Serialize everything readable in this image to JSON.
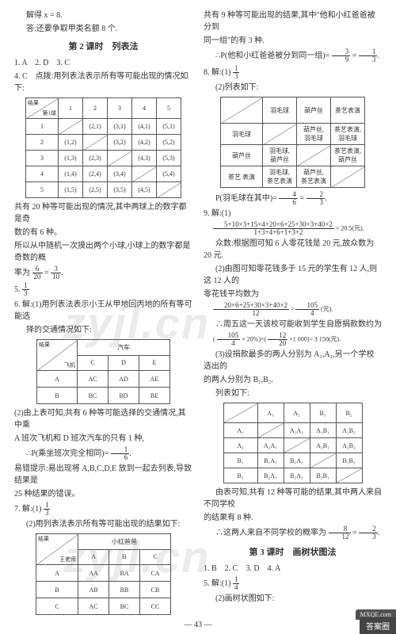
{
  "left": {
    "l1": "解得 x = 8.",
    "l2": "答:还要争取甲类名额 8 个.",
    "sec_title": "第 2 课时　列表法",
    "l3": "1. A　2. D　3. C",
    "l4": "4. C　点拨:用列表法表示所有等可能出现的情况如下:",
    "t1_hdr_diag_top": "结果",
    "t1_hdr_diag_bot": "第1球",
    "t1_cols": [
      "1",
      "2",
      "3",
      "4",
      "5"
    ],
    "t1_rows": [
      "1",
      "2",
      "3",
      "4",
      "5"
    ],
    "t1_c": [
      [
        "",
        "(2,1)",
        "(3,1)",
        "(4,1)",
        "(5,1)"
      ],
      [
        "(1,2)",
        "",
        "(3,2)",
        "(4,2)",
        "(5,2)"
      ],
      [
        "(1,3)",
        "(2,3)",
        "",
        "(4,3)",
        "(5,3)"
      ],
      [
        "(1,4)",
        "(2,4)",
        "(3,4)",
        "",
        "(5,4)"
      ],
      [
        "(1,5)",
        "(2,5)",
        "(3,5)",
        "(4,5)",
        ""
      ]
    ],
    "l5": "共有 20 种等可能出现的情况,其中两球上的数字都是奇",
    "l5b": "数的有 6 种。",
    "l6": "所以从中随机一次摸出两个小球,小球上的数字都是奇数的概",
    "l6b_pre": "率为",
    "fr_6_20_n": "6",
    "fr_6_20_d": "20",
    "eq_eq": "=",
    "fr_3_10_n": "3",
    "fr_3_10_d": "10",
    "l7_pre": "5.",
    "fr_1_3_n": "1",
    "fr_1_3_d": "3",
    "l8": "6. 解:(1)用列表法表示小王从甲地回丙地的所有等可能选",
    "l8b": "择的交通情况如下:",
    "t2_diag_top": "结果",
    "t2_diag_bot": "飞机",
    "t2_top_label": "汽车",
    "t2_cols": [
      "C",
      "D",
      "E"
    ],
    "t2_rows": [
      "A",
      "B"
    ],
    "t2_c": [
      [
        "AC",
        "AD",
        "AE"
      ],
      [
        "BC",
        "BD",
        "BE"
      ]
    ],
    "l9": "(2)由上表可知,共有 6 种等可能选择的交通情况,其中乘",
    "l9b": "A 班次飞机和 D 班次汽车的只有 1 种,",
    "l10_pre": "∴P(乘坐班次完全相同)=",
    "fr_1_6_n": "1",
    "fr_1_6_d": "6",
    "l11": "易错提示:易出现将 A,B,C,D,E 放到一起去列表,导致结果是",
    "l11b": "25 种结果的错误。",
    "l12_pre": "7. 解:(1)",
    "l13": "(2)用列表法表示所有等可能出现的结果如下:",
    "t3_diag_top": "结果",
    "t3_diag_bot": "王老师",
    "t3_top_label": "小红爸爸",
    "t3_cols": [
      "A",
      "B",
      "C"
    ],
    "t3_rows": [
      "A",
      "B",
      "C"
    ],
    "t3_c": [
      [
        "AA",
        "BA",
        "CA"
      ],
      [
        "AB",
        "BB",
        "CB"
      ],
      [
        "AC",
        "BC",
        "CC"
      ]
    ]
  },
  "right": {
    "l1": "共有 9 种等可能出现的结果,其中\"他和小红爸爸被分到",
    "l1b": "同一组\"的有 3 种.",
    "l2_pre": "∴P(他和小红爸爸被分到同一组)=",
    "fr_3_9_n": "3",
    "fr_3_9_d": "9",
    "eq_eq": "=",
    "fr_1_3r_n": "1",
    "fr_1_3r_d": "3",
    "l3_pre": "8. 解:(1)",
    "l3b": "(2)列表如下:",
    "t4_cols": [
      "羽毛球",
      "葫芦丝",
      "茶艺表演"
    ],
    "t4_rows": [
      "羽毛球",
      "葫芦丝",
      "茶艺\n表演"
    ],
    "t4_c": [
      [
        "",
        "葫芦丝,\n羽毛球",
        "茶艺表演,\n羽毛球"
      ],
      [
        "羽毛球,\n葫芦丝",
        "",
        "茶艺表演,\n葫芦丝"
      ],
      [
        "羽毛球,\n茶艺表演",
        "葫芦丝,\n茶艺表演",
        ""
      ]
    ],
    "l4_pre": "P(羽毛球在其中)=",
    "fr_4_6_n": "4",
    "fr_4_6_d": "6",
    "fr_2_3_n": "2",
    "fr_2_3_d": "3",
    "l5_pre": "9. 解:(1)",
    "l5_num": "5+10×3+15×4+20×6+25+30×3+40×2",
    "l5_den": "1+3+4+6+1+3+2",
    "l5_post": "= 20.5(元).",
    "l6": "众数:根据图可知 6 人零花钱是 20 元,故众数为 20 元.",
    "l7": "(2)由图可知零花钱多于 15 元的学生有 12 人,则这 12 人的",
    "l7b": "零花钱平均数为",
    "l7_num": "20×6+25+30×3+40×2",
    "l7_den": "12",
    "fr_105_4_n": "105",
    "fr_105_4_d": "4",
    "l7_post": "(元).",
    "l8": "∴周五这一天该校可能收到学生自愿捐款数约为",
    "l8b_pre": "(",
    "l8_inner": "× 20%)×(",
    "fr_12_20_n": "12",
    "fr_12_20_d": "20",
    "l8b_post": "×1 000)= 3 150(元).",
    "l9": "(3)设捐款最多的两人分别为 A₁,A₂,另一个学校选出的",
    "l9b": "的两人分别为 B₁,B₂.",
    "l10": "列表如下:",
    "t5_cols": [
      "A₁",
      "A₂",
      "B₁",
      "B₂"
    ],
    "t5_rows": [
      "A₁",
      "A₂",
      "B₁",
      "B₂"
    ],
    "t5_c": [
      [
        "",
        "A₁A₂",
        "A₁B₁",
        "A₁B₂"
      ],
      [
        "A₂A₁",
        "",
        "A₂B₁",
        "A₂B₂"
      ],
      [
        "B₁A₁",
        "B₁A₂",
        "",
        "B₁B₂"
      ],
      [
        "B₂A₁",
        "B₂A₂",
        "B₂B₁",
        ""
      ]
    ],
    "l11": "由表可知,共有 12 种等可能的结果,其中两人来自不同学校",
    "l11b": "的结果有 8 种.",
    "l12_pre": "∴这两人来自不同学校的概率为",
    "fr_8_12_n": "8",
    "fr_8_12_d": "12",
    "sec_title2": "第 3 课时　画树状图法",
    "l13": "1. B　2. C　3. D　4. A",
    "l14_pre": "5. 解:(1)",
    "fr_1_4_n": "1",
    "fr_1_4_d": "4",
    "l15": "(2)画树状图如下:"
  },
  "foot": {
    "page": "— 43 —",
    "badge_top": "MXQE.com",
    "badge_bot": "答案圈"
  },
  "wm": "zyjl.cn",
  "style": {
    "t1_cell_w": 28,
    "t1_cell_h": 17,
    "t2_cell_w": 36,
    "t2_cell_h": 18,
    "t3_cell_w": 36,
    "t3_cell_h": 18,
    "t4_cell_w": 40,
    "t4_cell_h": 24,
    "t5_cell_w": 30,
    "t5_cell_h": 16
  }
}
